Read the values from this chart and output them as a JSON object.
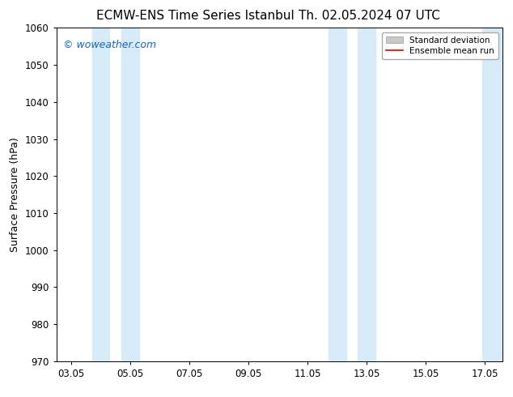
{
  "title_left": "ECMW-ENS Time Series Istanbul",
  "title_right": "Th. 02.05.2024 07 UTC",
  "ylabel": "Surface Pressure (hPa)",
  "ylim": [
    970,
    1060
  ],
  "yticks": [
    970,
    980,
    990,
    1000,
    1010,
    1020,
    1030,
    1040,
    1050,
    1060
  ],
  "xtick_labels": [
    "03.05",
    "05.05",
    "07.05",
    "09.05",
    "11.05",
    "13.05",
    "15.05",
    "17.05"
  ],
  "x_dates": [
    0,
    2,
    4,
    6,
    8,
    10,
    12,
    14
  ],
  "shaded_bands": [
    {
      "x_start": 0.7,
      "x_end": 1.3
    },
    {
      "x_start": 1.7,
      "x_end": 2.3
    },
    {
      "x_start": 8.7,
      "x_end": 9.3
    },
    {
      "x_start": 9.7,
      "x_end": 10.3
    },
    {
      "x_start": 13.9,
      "x_end": 14.6
    }
  ],
  "shaded_color": "#d6eaf8",
  "background_color": "#ffffff",
  "watermark_text": "© woweather.com",
  "watermark_color": "#1565c0",
  "legend_std_dev_color": "#c8c8c8",
  "legend_mean_run_color": "#cc0000",
  "title_fontsize": 11,
  "axis_label_fontsize": 9,
  "tick_fontsize": 8.5,
  "watermark_fontsize": 9,
  "legend_fontsize": 7.5,
  "x_min": -0.5,
  "x_max": 14.6
}
